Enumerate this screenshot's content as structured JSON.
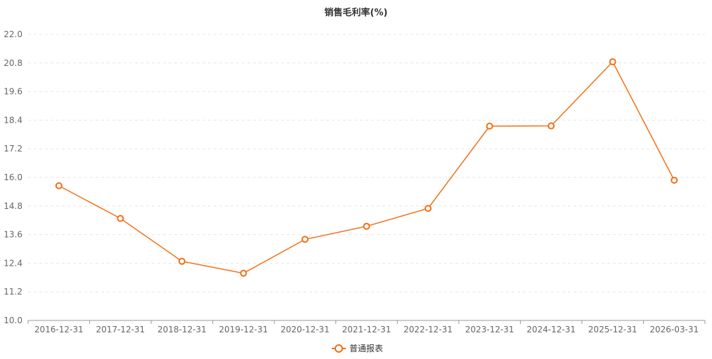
{
  "chart_data": {
    "type": "line",
    "title": "销售毛利率(%)",
    "xlabel": "",
    "ylabel": "",
    "categories": [
      "2016-12-31",
      "2017-12-31",
      "2018-12-31",
      "2019-12-31",
      "2020-12-31",
      "2021-12-31",
      "2022-12-31",
      "2023-12-31",
      "2024-12-31",
      "2025-12-31",
      "2026-03-31"
    ],
    "series": [
      {
        "name": "普通报表",
        "values": [
          15.65,
          14.28,
          12.48,
          11.98,
          13.4,
          13.95,
          14.7,
          18.15,
          18.16,
          20.85,
          15.88
        ]
      }
    ],
    "ylim": [
      10.0,
      22.0
    ],
    "yticks": [
      "10.0",
      "11.2",
      "12.4",
      "13.6",
      "14.8",
      "16.0",
      "17.2",
      "18.4",
      "19.6",
      "20.8",
      "22.0"
    ],
    "grid": true,
    "legend_position": "bottom",
    "colors": {
      "series": "#f07016",
      "grid": "#e6e6e6",
      "axis": "#999999"
    }
  }
}
